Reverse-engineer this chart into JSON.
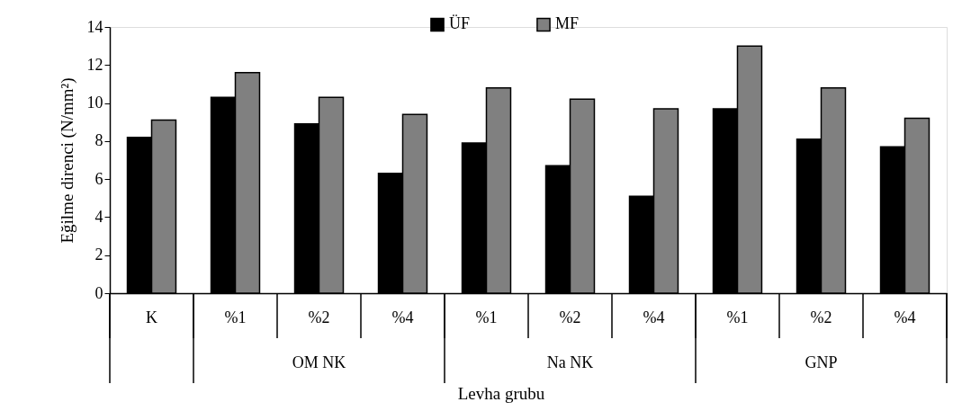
{
  "chart_data": {
    "type": "bar",
    "categories": [
      "K",
      "%1",
      "%2",
      "%4",
      "%1",
      "%2",
      "%4",
      "%1",
      "%2",
      "%4"
    ],
    "series": [
      {
        "name": "ÜF",
        "color": "#000000",
        "values": [
          8.2,
          10.3,
          8.9,
          6.3,
          7.9,
          6.7,
          5.1,
          9.7,
          8.1,
          7.7
        ]
      },
      {
        "name": "MF",
        "color": "#808080",
        "values": [
          9.1,
          11.6,
          10.3,
          9.4,
          10.8,
          10.2,
          9.7,
          13.0,
          10.8,
          9.2
        ]
      }
    ],
    "ylim": [
      0,
      14
    ],
    "yticks": [
      0,
      2,
      4,
      6,
      8,
      10,
      12,
      14
    ],
    "ylabel": "Eğilme direnci (N/mm²)",
    "xlabel": "Levha grubu",
    "annotations": [
      "OM NK",
      "Na NK",
      "GNP"
    ],
    "legend": "top",
    "grid": false
  }
}
